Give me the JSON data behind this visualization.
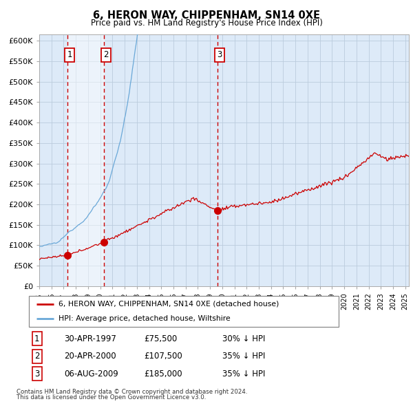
{
  "title": "6, HERON WAY, CHIPPENHAM, SN14 0XE",
  "subtitle": "Price paid vs. HM Land Registry's House Price Index (HPI)",
  "hpi_color": "#6aa8d8",
  "hpi_fill_color": "#ddeaf8",
  "price_color": "#cc0000",
  "sale_dot_color": "#cc0000",
  "vline_color": "#cc0000",
  "bg_color": "#ddeaf8",
  "grid_color": "#bbccdd",
  "ylabel_ticks": [
    "£0",
    "£50K",
    "£100K",
    "£150K",
    "£200K",
    "£250K",
    "£300K",
    "£350K",
    "£400K",
    "£450K",
    "£500K",
    "£550K",
    "£600K"
  ],
  "ytick_vals": [
    0,
    50000,
    100000,
    150000,
    200000,
    250000,
    300000,
    350000,
    400000,
    450000,
    500000,
    550000,
    600000
  ],
  "ylim": [
    0,
    615000
  ],
  "xlim_start": 1995.0,
  "xlim_end": 2025.3,
  "sale1_x": 1997.32,
  "sale1_y": 75500,
  "sale2_x": 2000.3,
  "sale2_y": 107500,
  "sale3_x": 2009.59,
  "sale3_y": 185000,
  "legend_line1": "6, HERON WAY, CHIPPENHAM, SN14 0XE (detached house)",
  "legend_line2": "HPI: Average price, detached house, Wiltshire",
  "table_data": [
    [
      "1",
      "30-APR-1997",
      "£75,500",
      "30% ↓ HPI"
    ],
    [
      "2",
      "20-APR-2000",
      "£107,500",
      "35% ↓ HPI"
    ],
    [
      "3",
      "06-AUG-2009",
      "£185,000",
      "35% ↓ HPI"
    ]
  ],
  "footnote1": "Contains HM Land Registry data © Crown copyright and database right 2024.",
  "footnote2": "This data is licensed under the Open Government Licence v3.0.",
  "shade_between_x1": 1997.32,
  "shade_between_x2": 2000.3
}
